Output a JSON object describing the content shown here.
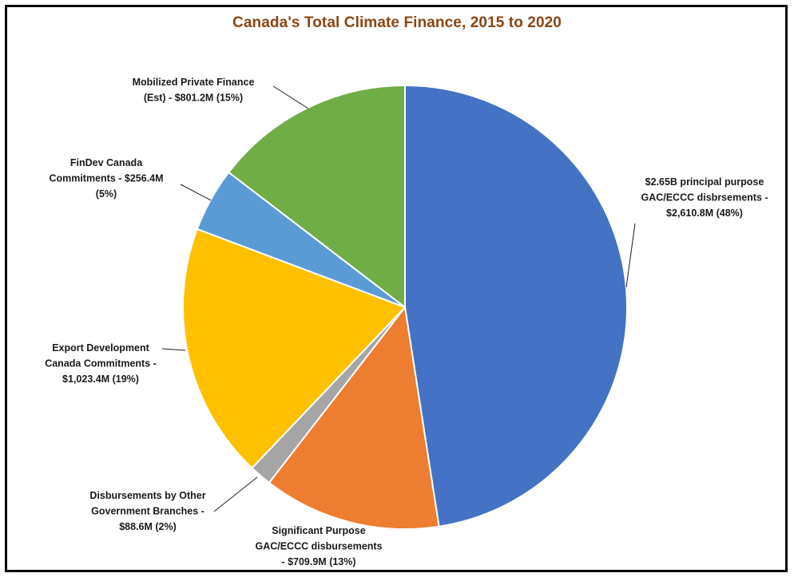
{
  "chart_data": {
    "type": "pie",
    "title": "Canada's Total Climate Finance, 2015 to 2020",
    "title_color": "#8B4513",
    "start_angle": "12 o'clock",
    "direction": "clockwise",
    "slices": [
      {
        "label": "$2.65B principal purpose GAC/ECCC disbrsements - $2,610.8M (48%)",
        "label_lines": [
          "$2.65B principal purpose",
          "GAC/ECCC disbrsements -",
          "$2,610.8M (48%)"
        ],
        "value": 2610.8,
        "percent": 48,
        "color": "#4472C4"
      },
      {
        "label": "Significant Purpose GAC/ECCC disbursements - $709.9M (13%)",
        "label_lines": [
          "Significant Purpose",
          "GAC/ECCC disbursements",
          "- $709.9M (13%)"
        ],
        "value": 709.9,
        "percent": 13,
        "color": "#ED7D31"
      },
      {
        "label": "Disbursements by Other Government Branches - $88.6M (2%)",
        "label_lines": [
          "Disbursements by Other",
          "Government Branches -",
          "$88.6M (2%)"
        ],
        "value": 88.6,
        "percent": 2,
        "color": "#A5A5A5"
      },
      {
        "label": "Export Development Canada Commitments - $1,023.4M (19%)",
        "label_lines": [
          "Export Development",
          "Canada Commitments -",
          "$1,023.4M (19%)"
        ],
        "value": 1023.4,
        "percent": 19,
        "color": "#FFC000"
      },
      {
        "label": "FinDev Canada Commitments - $256.4M (5%)",
        "label_lines": [
          "FinDev Canada",
          "Commitments - $256.4M",
          "(5%)"
        ],
        "value": 256.4,
        "percent": 5,
        "color": "#5B9BD5"
      },
      {
        "label": "Mobilized Private Finance (Est) - $801.2M (15%)",
        "label_lines": [
          "Mobilized Private Finance",
          "(Est) - $801.2M (15%)"
        ],
        "value": 801.2,
        "percent": 15,
        "color": "#70AD47"
      }
    ]
  }
}
